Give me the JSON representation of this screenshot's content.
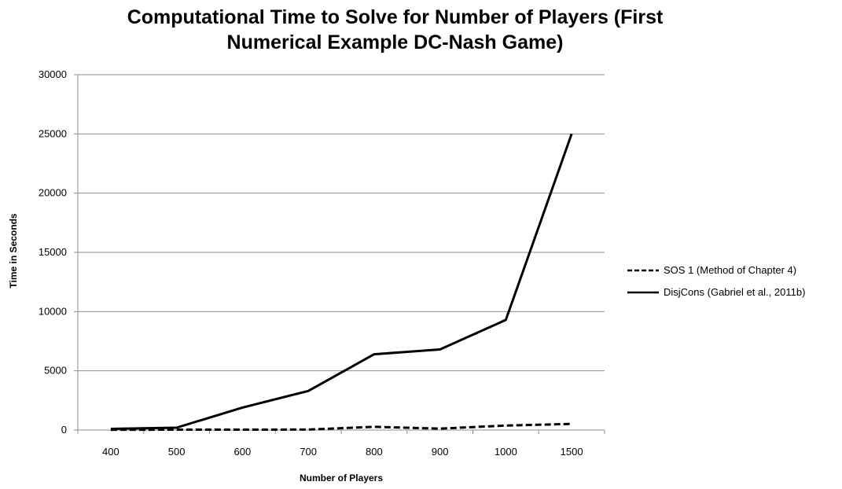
{
  "chart_data": {
    "type": "line",
    "title": "Computational Time to Solve for Number of Players (First Numerical Example DC-Nash Game)",
    "title_lines": [
      "Computational Time to Solve for Number of Players (First",
      "Numerical Example DC-Nash Game)"
    ],
    "xlabel": "Number of Players",
    "ylabel": "Time in Seconds",
    "categories": [
      "400",
      "500",
      "600",
      "700",
      "800",
      "900",
      "1000",
      "1500"
    ],
    "ylim": [
      0,
      30000
    ],
    "yticks": [
      0,
      5000,
      10000,
      15000,
      20000,
      25000,
      30000
    ],
    "grid": "horizontal",
    "legend_position": "right",
    "series": [
      {
        "name": "SOS 1 (Method of Chapter 4)",
        "style": "dashed",
        "color": "#000000",
        "values": [
          20,
          30,
          30,
          40,
          270,
          120,
          380,
          520
        ]
      },
      {
        "name": "DisjCons (Gabriel et al., 2011b)",
        "style": "solid",
        "color": "#000000",
        "values": [
          100,
          200,
          1900,
          3300,
          6400,
          6800,
          9300,
          25000
        ]
      }
    ]
  }
}
